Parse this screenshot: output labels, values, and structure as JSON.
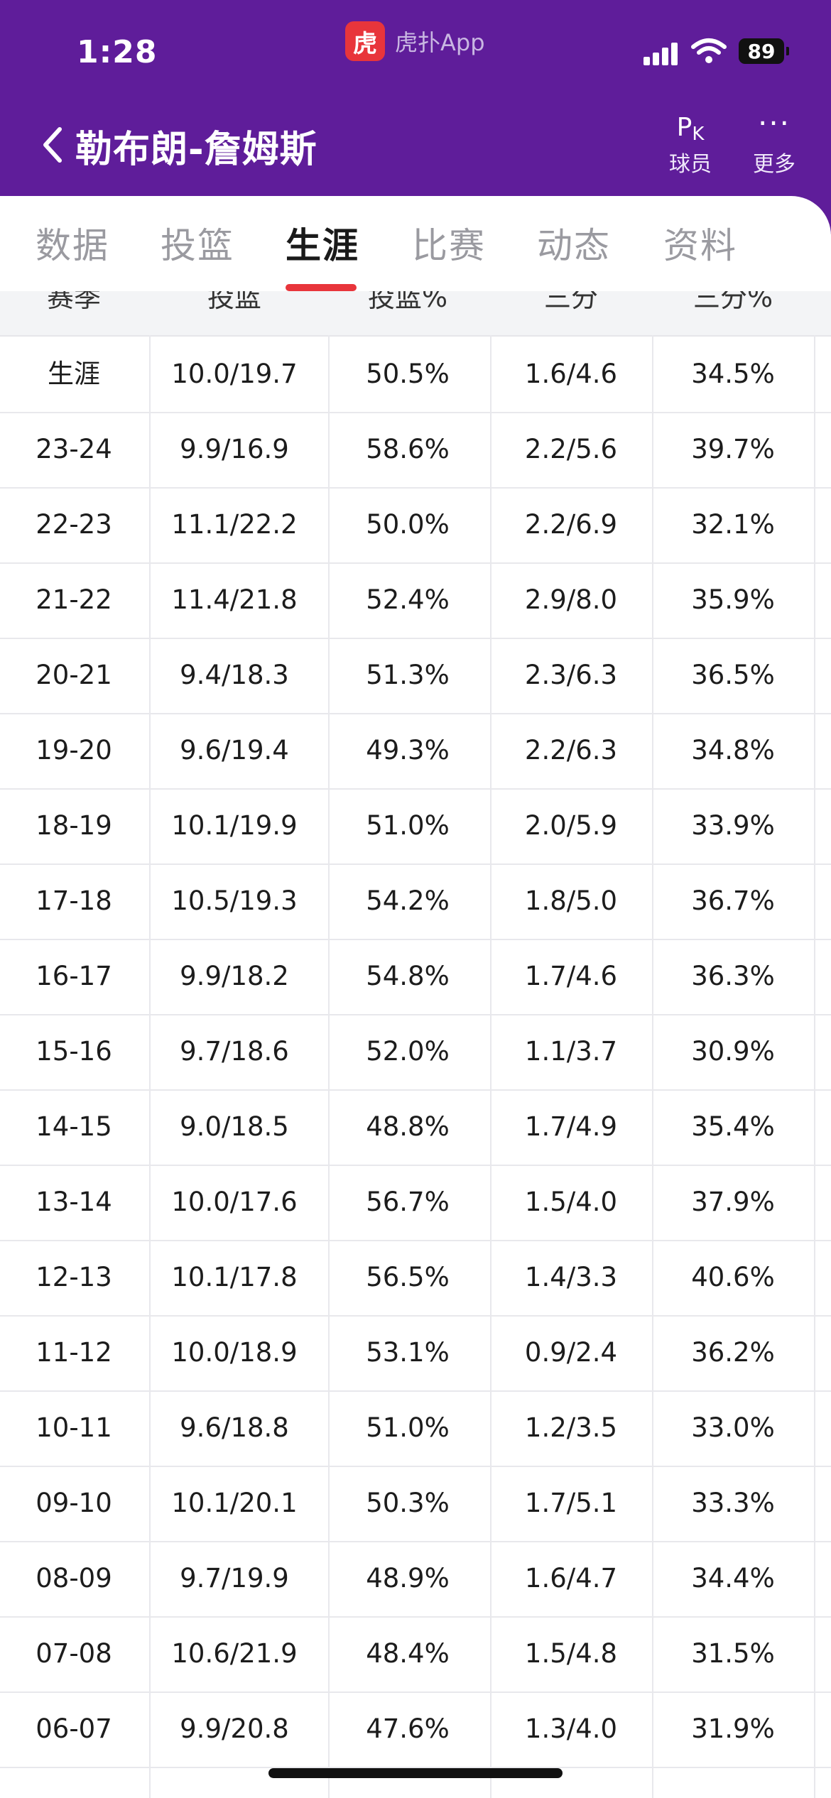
{
  "status_bar": {
    "time": "1:28",
    "app_logo_text": "虎",
    "app_name": "虎扑App",
    "battery": "89"
  },
  "header": {
    "player_name": "勒布朗-詹姆斯",
    "pk_label": "球员",
    "pk_icon_main": "P",
    "pk_icon_sub": "K",
    "more_label": "更多",
    "more_icon_text": "···"
  },
  "tabs": [
    {
      "label": "数据"
    },
    {
      "label": "投篮"
    },
    {
      "label": "生涯",
      "active": true
    },
    {
      "label": "比赛"
    },
    {
      "label": "动态"
    },
    {
      "label": "资料"
    }
  ],
  "table": {
    "columns": [
      "赛季",
      "投篮",
      "投篮%",
      "三分",
      "三分%"
    ],
    "rows": [
      [
        "生涯",
        "10.0/19.7",
        "50.5%",
        "1.6/4.6",
        "34.5%"
      ],
      [
        "23-24",
        "9.9/16.9",
        "58.6%",
        "2.2/5.6",
        "39.7%"
      ],
      [
        "22-23",
        "11.1/22.2",
        "50.0%",
        "2.2/6.9",
        "32.1%"
      ],
      [
        "21-22",
        "11.4/21.8",
        "52.4%",
        "2.9/8.0",
        "35.9%"
      ],
      [
        "20-21",
        "9.4/18.3",
        "51.3%",
        "2.3/6.3",
        "36.5%"
      ],
      [
        "19-20",
        "9.6/19.4",
        "49.3%",
        "2.2/6.3",
        "34.8%"
      ],
      [
        "18-19",
        "10.1/19.9",
        "51.0%",
        "2.0/5.9",
        "33.9%"
      ],
      [
        "17-18",
        "10.5/19.3",
        "54.2%",
        "1.8/5.0",
        "36.7%"
      ],
      [
        "16-17",
        "9.9/18.2",
        "54.8%",
        "1.7/4.6",
        "36.3%"
      ],
      [
        "15-16",
        "9.7/18.6",
        "52.0%",
        "1.1/3.7",
        "30.9%"
      ],
      [
        "14-15",
        "9.0/18.5",
        "48.8%",
        "1.7/4.9",
        "35.4%"
      ],
      [
        "13-14",
        "10.0/17.6",
        "56.7%",
        "1.5/4.0",
        "37.9%"
      ],
      [
        "12-13",
        "10.1/17.8",
        "56.5%",
        "1.4/3.3",
        "40.6%"
      ],
      [
        "11-12",
        "10.0/18.9",
        "53.1%",
        "0.9/2.4",
        "36.2%"
      ],
      [
        "10-11",
        "9.6/18.8",
        "51.0%",
        "1.2/3.5",
        "33.0%"
      ],
      [
        "09-10",
        "10.1/20.1",
        "50.3%",
        "1.7/5.1",
        "33.3%"
      ],
      [
        "08-09",
        "9.7/19.9",
        "48.9%",
        "1.6/4.7",
        "34.4%"
      ],
      [
        "07-08",
        "10.6/21.9",
        "48.4%",
        "1.5/4.8",
        "31.5%"
      ],
      [
        "06-07",
        "9.9/20.8",
        "47.6%",
        "1.3/4.0",
        "31.9%"
      ]
    ]
  },
  "colors": {
    "header_bg": "#5f1d9a",
    "accent": "#e8353b"
  }
}
